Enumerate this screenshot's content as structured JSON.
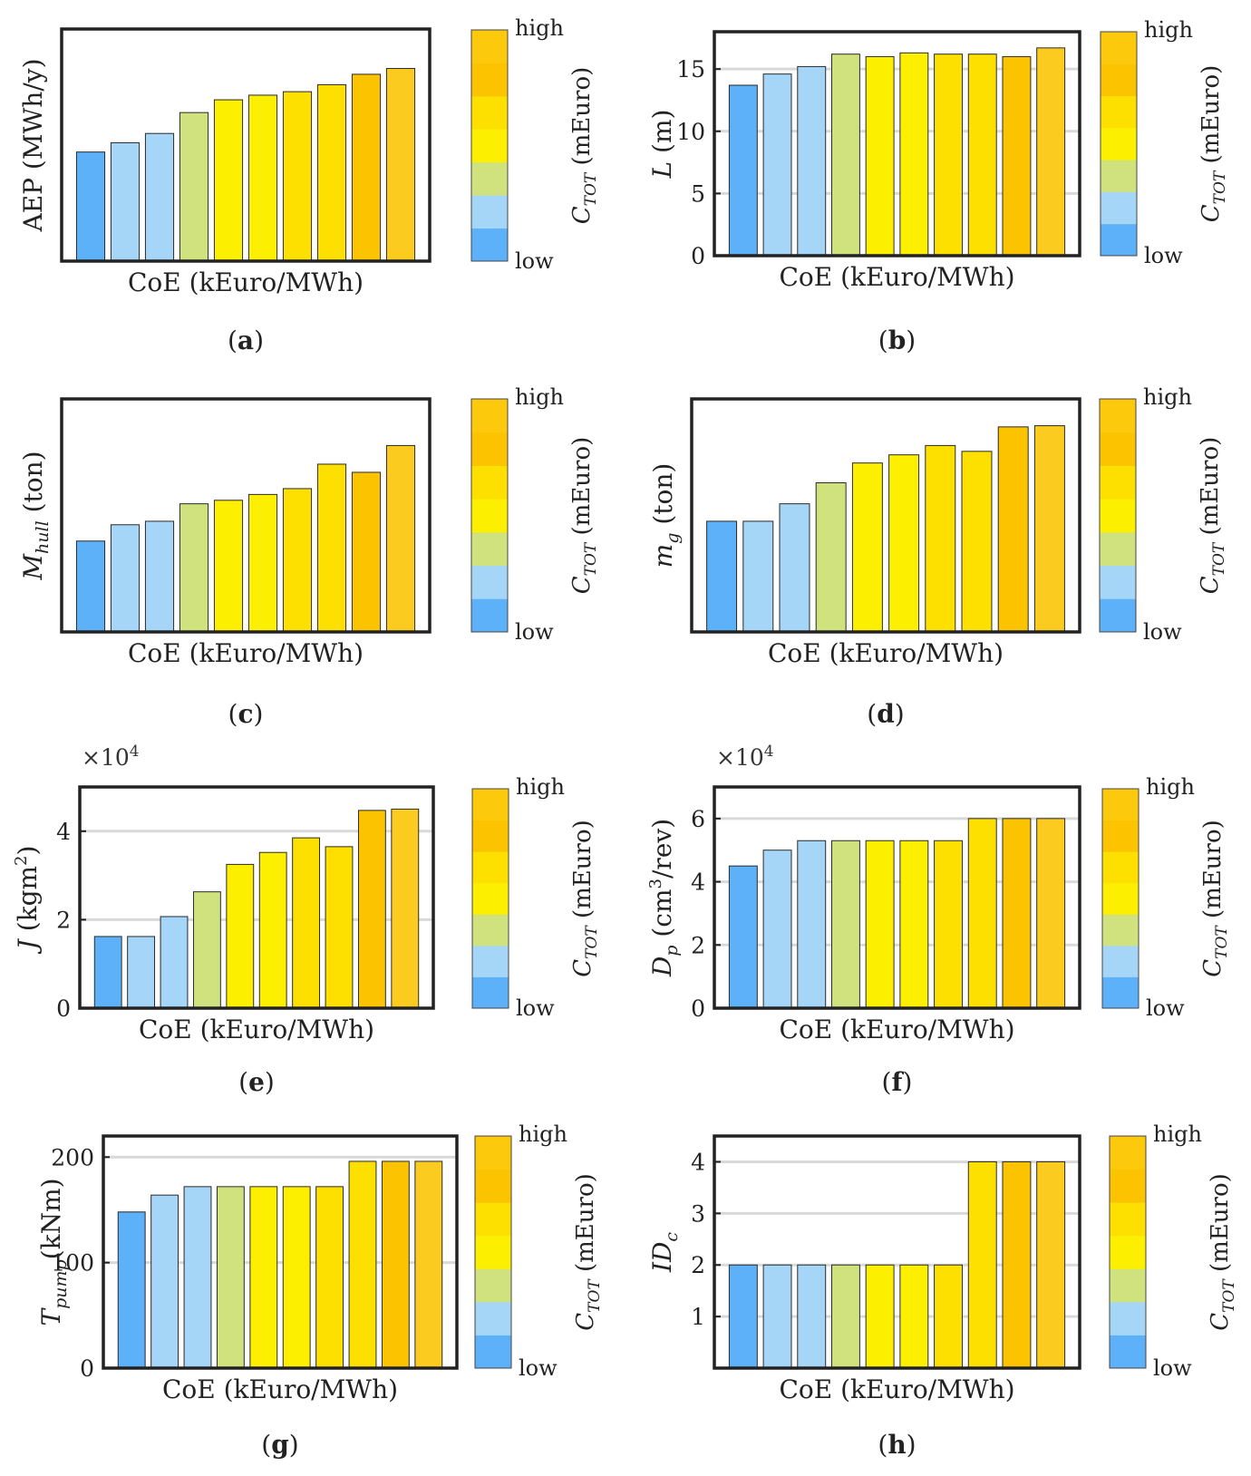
{
  "colors": {
    "blue_dark": "#5cb1f8",
    "blue_light": "#a5d6f7",
    "green": "#d0e27e",
    "yellow_bright": "#fcef00",
    "yellow": "#fde000",
    "gold": "#fcd300",
    "orange": "#fbc300",
    "amber": "#fccb20",
    "colorbar": [
      "#5cb1f8",
      "#a5d6f7",
      "#d0e27e",
      "#fcef00",
      "#fde000",
      "#fbc300",
      "#fcc90c"
    ]
  },
  "colorbar": {
    "high_label": "high",
    "low_label": "low",
    "ylabel_main": "C",
    "ylabel_sub": "TOT",
    "ylabel_unit": " (mEuro)"
  },
  "chart_data": [
    {
      "panel": "(a)",
      "type": "bar",
      "xlabel": "CoE (kEuro/MWh)",
      "ylabel": {
        "main": "AEP (MWh/y)",
        "sub": "",
        "sup": "",
        "tail": ""
      },
      "ylim": [
        0,
        100
      ],
      "yticks": [],
      "grid": false,
      "exponent": "",
      "values": [
        47,
        51,
        55,
        64,
        69.5,
        71.5,
        73,
        76,
        80.5,
        83
      ],
      "colors": [
        "#5cb1f8",
        "#a5d6f7",
        "#a5d6f7",
        "#d0e27e",
        "#fcef00",
        "#fcef00",
        "#fde000",
        "#fde000",
        "#fbc300",
        "#fccb20"
      ]
    },
    {
      "panel": "(b)",
      "type": "bar",
      "xlabel": "CoE (kEuro/MWh)",
      "ylabel": {
        "main": "L",
        "sub": "",
        "sup": "",
        "tail": " (m)"
      },
      "ylim": [
        0,
        18
      ],
      "yticks": [
        0,
        5,
        10,
        15
      ],
      "grid": true,
      "exponent": "",
      "values": [
        13.7,
        14.6,
        15.2,
        16.2,
        16.0,
        16.3,
        16.2,
        16.2,
        16.0,
        16.7
      ],
      "colors": [
        "#5cb1f8",
        "#a5d6f7",
        "#a5d6f7",
        "#d0e27e",
        "#fcef00",
        "#fcef00",
        "#fde000",
        "#fde000",
        "#fbc300",
        "#fccb20"
      ]
    },
    {
      "panel": "(c)",
      "type": "bar",
      "xlabel": "CoE (kEuro/MWh)",
      "ylabel": {
        "main": "M",
        "sub": "hull",
        "sup": "",
        "tail": " (ton)"
      },
      "ylim": [
        0,
        100
      ],
      "yticks": [],
      "grid": false,
      "exponent": "",
      "values": [
        39,
        46,
        47.5,
        55,
        56.5,
        59,
        61.5,
        72,
        68.5,
        80
      ],
      "colors": [
        "#5cb1f8",
        "#a5d6f7",
        "#a5d6f7",
        "#d0e27e",
        "#fcef00",
        "#fcef00",
        "#fde000",
        "#fde000",
        "#fbc300",
        "#fccb20"
      ]
    },
    {
      "panel": "(d)",
      "type": "bar",
      "xlabel": "CoE (kEuro/MWh)",
      "ylabel": {
        "main": "m",
        "sub": "g",
        "sup": "",
        "tail": " (ton)"
      },
      "ylim": [
        0,
        100
      ],
      "yticks": [],
      "grid": false,
      "exponent": "",
      "values": [
        47.5,
        47.5,
        55,
        64,
        72.5,
        76,
        80,
        77.5,
        88,
        88.5
      ],
      "colors": [
        "#5cb1f8",
        "#a5d6f7",
        "#a5d6f7",
        "#d0e27e",
        "#fcef00",
        "#fcef00",
        "#fde000",
        "#fde000",
        "#fbc300",
        "#fccb20"
      ]
    },
    {
      "panel": "(e)",
      "type": "bar",
      "xlabel": "CoE (kEuro/MWh)",
      "ylabel": {
        "main": "J",
        "sub": "",
        "sup": "2",
        "tail": " (kgm",
        "tail2": ")"
      },
      "ylim": [
        0,
        5
      ],
      "yticks": [
        0,
        2,
        4
      ],
      "grid": true,
      "exponent": "4",
      "values": [
        1.62,
        1.62,
        2.07,
        2.63,
        3.25,
        3.52,
        3.85,
        3.65,
        4.47,
        4.5
      ],
      "colors": [
        "#5cb1f8",
        "#a5d6f7",
        "#a5d6f7",
        "#d0e27e",
        "#fcef00",
        "#fcef00",
        "#fde000",
        "#fde000",
        "#fbc300",
        "#fccb20"
      ]
    },
    {
      "panel": "(f)",
      "type": "bar",
      "xlabel": "CoE (kEuro/MWh)",
      "ylabel": {
        "main": "D",
        "sub": "p",
        "sup": "3",
        "tail": " (cm",
        "tail2": "/rev)"
      },
      "ylim": [
        0,
        7
      ],
      "yticks": [
        0,
        2,
        4,
        6
      ],
      "grid": true,
      "exponent": "4",
      "values": [
        4.5,
        5.0,
        5.3,
        5.3,
        5.3,
        5.3,
        5.3,
        6.0,
        6.0,
        6.0
      ],
      "colors": [
        "#5cb1f8",
        "#a5d6f7",
        "#a5d6f7",
        "#d0e27e",
        "#fcef00",
        "#fcef00",
        "#fde000",
        "#fde000",
        "#fbc300",
        "#fccb20"
      ]
    },
    {
      "panel": "(g)",
      "type": "bar",
      "xlabel": "CoE (kEuro/MWh)",
      "ylabel": {
        "main": "T",
        "sub": "pump",
        "sup": "",
        "tail": "(kNm)"
      },
      "ylim": [
        0,
        220
      ],
      "yticks": [
        0,
        100,
        200
      ],
      "grid": true,
      "exponent": "",
      "values": [
        148,
        164,
        172,
        172,
        172,
        172,
        172,
        196,
        196,
        196
      ],
      "colors": [
        "#5cb1f8",
        "#a5d6f7",
        "#a5d6f7",
        "#d0e27e",
        "#fcef00",
        "#fcef00",
        "#fde000",
        "#fde000",
        "#fbc300",
        "#fccb20"
      ]
    },
    {
      "panel": "(h)",
      "type": "bar",
      "xlabel": "CoE (kEuro/MWh)",
      "ylabel": {
        "main": "ID",
        "sub": "c",
        "sup": "",
        "tail": ""
      },
      "ylim": [
        0,
        4.5
      ],
      "yticks": [
        1,
        2,
        3,
        4
      ],
      "grid": true,
      "exponent": "",
      "values": [
        2,
        2,
        2,
        2,
        2,
        2,
        2,
        4,
        4,
        4
      ],
      "colors": [
        "#5cb1f8",
        "#a5d6f7",
        "#a5d6f7",
        "#d0e27e",
        "#fcef00",
        "#fcef00",
        "#fde000",
        "#fde000",
        "#fbc300",
        "#fccb20"
      ]
    }
  ]
}
